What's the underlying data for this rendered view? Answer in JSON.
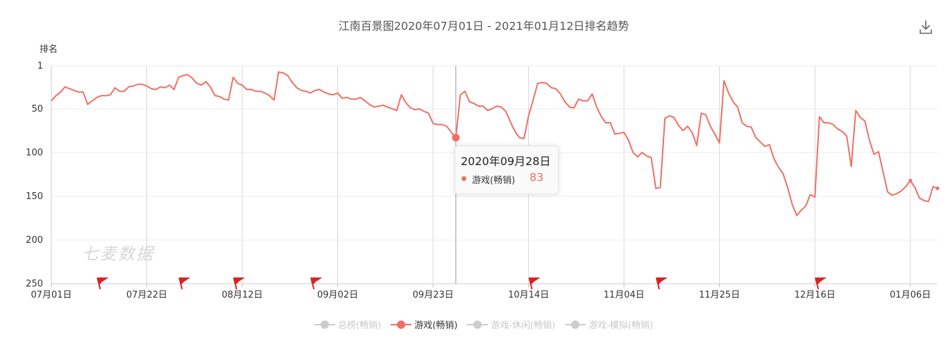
{
  "chart_data": {
    "type": "line",
    "title": "江南百景图2020年07月01日 - 2021年01月12日排名趋势",
    "ylabel": "排名",
    "y_inverted": true,
    "ylim": [
      1,
      250
    ],
    "y_ticks": [
      {
        "value": 1,
        "label": "1"
      },
      {
        "value": 50,
        "label": "50"
      },
      {
        "value": 100,
        "label": "100"
      },
      {
        "value": 150,
        "label": "150"
      },
      {
        "value": 200,
        "label": "200"
      },
      {
        "value": 250,
        "label": "250"
      }
    ],
    "x_range": [
      "2020-07-01",
      "2021-01-12"
    ],
    "x_ticks": [
      {
        "date": "2020-07-01",
        "label": "07月01日"
      },
      {
        "date": "2020-07-22",
        "label": "07月22日"
      },
      {
        "date": "2020-08-12",
        "label": "08月12日"
      },
      {
        "date": "2020-09-02",
        "label": "09月02日"
      },
      {
        "date": "2020-09-23",
        "label": "09月23日"
      },
      {
        "date": "2020-10-14",
        "label": "10月14日"
      },
      {
        "date": "2020-11-04",
        "label": "11月04日"
      },
      {
        "date": "2020-11-25",
        "label": "11月25日"
      },
      {
        "date": "2020-12-16",
        "label": "12月16日"
      },
      {
        "date": "2021-01-06",
        "label": "01月06日"
      }
    ],
    "grid": true,
    "legend_position": "bottom",
    "series": [
      {
        "name": "总榜(畅销)",
        "active": false,
        "points": []
      },
      {
        "name": "游戏(畅销)",
        "active": true,
        "color": "#f06f64",
        "points": [
          [
            "2020-07-01",
            41
          ],
          [
            "2020-07-02",
            35
          ],
          [
            "2020-07-03",
            31
          ],
          [
            "2020-07-04",
            25
          ],
          [
            "2020-07-05",
            27
          ],
          [
            "2020-07-06",
            29
          ],
          [
            "2020-07-07",
            31
          ],
          [
            "2020-07-08",
            31
          ],
          [
            "2020-07-09",
            45
          ],
          [
            "2020-07-10",
            41
          ],
          [
            "2020-07-11",
            37
          ],
          [
            "2020-07-12",
            35
          ],
          [
            "2020-07-13",
            35
          ],
          [
            "2020-07-14",
            34
          ],
          [
            "2020-07-15",
            26
          ],
          [
            "2020-07-16",
            30
          ],
          [
            "2020-07-17",
            30
          ],
          [
            "2020-07-18",
            25
          ],
          [
            "2020-07-19",
            24
          ],
          [
            "2020-07-20",
            22
          ],
          [
            "2020-07-21",
            22
          ],
          [
            "2020-07-22",
            24
          ],
          [
            "2020-07-23",
            27
          ],
          [
            "2020-07-24",
            28
          ],
          [
            "2020-07-25",
            25
          ],
          [
            "2020-07-26",
            26
          ],
          [
            "2020-07-27",
            23
          ],
          [
            "2020-07-28",
            28
          ],
          [
            "2020-07-29",
            14
          ],
          [
            "2020-07-30",
            12
          ],
          [
            "2020-07-31",
            11
          ],
          [
            "2020-08-01",
            15
          ],
          [
            "2020-08-02",
            21
          ],
          [
            "2020-08-03",
            23
          ],
          [
            "2020-08-04",
            19
          ],
          [
            "2020-08-05",
            25
          ],
          [
            "2020-08-06",
            35
          ],
          [
            "2020-08-07",
            36
          ],
          [
            "2020-08-08",
            39
          ],
          [
            "2020-08-09",
            40
          ],
          [
            "2020-08-10",
            14
          ],
          [
            "2020-08-11",
            21
          ],
          [
            "2020-08-12",
            23
          ],
          [
            "2020-08-13",
            28
          ],
          [
            "2020-08-14",
            28
          ],
          [
            "2020-08-15",
            30
          ],
          [
            "2020-08-16",
            30
          ],
          [
            "2020-08-17",
            32
          ],
          [
            "2020-08-18",
            35
          ],
          [
            "2020-08-19",
            40
          ],
          [
            "2020-08-20",
            8
          ],
          [
            "2020-08-21",
            9
          ],
          [
            "2020-08-22",
            12
          ],
          [
            "2020-08-23",
            20
          ],
          [
            "2020-08-24",
            26
          ],
          [
            "2020-08-25",
            29
          ],
          [
            "2020-08-26",
            30
          ],
          [
            "2020-08-27",
            32
          ],
          [
            "2020-08-28",
            29
          ],
          [
            "2020-08-29",
            28
          ],
          [
            "2020-08-30",
            31
          ],
          [
            "2020-08-31",
            33
          ],
          [
            "2020-09-01",
            34
          ],
          [
            "2020-09-02",
            32
          ],
          [
            "2020-09-03",
            38
          ],
          [
            "2020-09-04",
            37
          ],
          [
            "2020-09-05",
            39
          ],
          [
            "2020-09-06",
            39
          ],
          [
            "2020-09-07",
            37
          ],
          [
            "2020-09-08",
            41
          ],
          [
            "2020-09-09",
            45
          ],
          [
            "2020-09-10",
            48
          ],
          [
            "2020-09-11",
            47
          ],
          [
            "2020-09-12",
            46
          ],
          [
            "2020-09-13",
            48
          ],
          [
            "2020-09-14",
            50
          ],
          [
            "2020-09-15",
            52
          ],
          [
            "2020-09-16",
            34
          ],
          [
            "2020-09-17",
            43
          ],
          [
            "2020-09-18",
            49
          ],
          [
            "2020-09-19",
            51
          ],
          [
            "2020-09-20",
            50
          ],
          [
            "2020-09-21",
            53
          ],
          [
            "2020-09-22",
            55
          ],
          [
            "2020-09-23",
            67
          ],
          [
            "2020-09-24",
            68
          ],
          [
            "2020-09-25",
            68
          ],
          [
            "2020-09-26",
            70
          ],
          [
            "2020-09-27",
            77
          ],
          [
            "2020-09-28",
            83
          ],
          [
            "2020-09-29",
            34
          ],
          [
            "2020-09-30",
            30
          ],
          [
            "2020-10-01",
            42
          ],
          [
            "2020-10-02",
            44
          ],
          [
            "2020-10-03",
            47
          ],
          [
            "2020-10-04",
            47
          ],
          [
            "2020-10-05",
            52
          ],
          [
            "2020-10-06",
            50
          ],
          [
            "2020-10-07",
            47
          ],
          [
            "2020-10-08",
            48
          ],
          [
            "2020-10-09",
            53
          ],
          [
            "2020-10-10",
            65
          ],
          [
            "2020-10-11",
            76
          ],
          [
            "2020-10-12",
            83
          ],
          [
            "2020-10-13",
            84
          ],
          [
            "2020-10-14",
            58
          ],
          [
            "2020-10-15",
            40
          ],
          [
            "2020-10-16",
            21
          ],
          [
            "2020-10-17",
            20
          ],
          [
            "2020-10-18",
            21
          ],
          [
            "2020-10-19",
            26
          ],
          [
            "2020-10-20",
            27
          ],
          [
            "2020-10-21",
            33
          ],
          [
            "2020-10-22",
            42
          ],
          [
            "2020-10-23",
            48
          ],
          [
            "2020-10-24",
            49
          ],
          [
            "2020-10-25",
            39
          ],
          [
            "2020-10-26",
            41
          ],
          [
            "2020-10-27",
            41
          ],
          [
            "2020-10-28",
            33
          ],
          [
            "2020-10-29",
            48
          ],
          [
            "2020-10-30",
            59
          ],
          [
            "2020-10-31",
            66
          ],
          [
            "2020-11-01",
            66
          ],
          [
            "2020-11-02",
            79
          ],
          [
            "2020-11-03",
            78
          ],
          [
            "2020-11-04",
            77
          ],
          [
            "2020-11-05",
            86
          ],
          [
            "2020-11-06",
            100
          ],
          [
            "2020-11-07",
            105
          ],
          [
            "2020-11-08",
            100
          ],
          [
            "2020-11-09",
            104
          ],
          [
            "2020-11-10",
            106
          ],
          [
            "2020-11-11",
            141
          ],
          [
            "2020-11-12",
            140
          ],
          [
            "2020-11-13",
            61
          ],
          [
            "2020-11-14",
            58
          ],
          [
            "2020-11-15",
            60
          ],
          [
            "2020-11-16",
            69
          ],
          [
            "2020-11-17",
            75
          ],
          [
            "2020-11-18",
            70
          ],
          [
            "2020-11-19",
            77
          ],
          [
            "2020-11-20",
            92
          ],
          [
            "2020-11-21",
            55
          ],
          [
            "2020-11-22",
            57
          ],
          [
            "2020-11-23",
            70
          ],
          [
            "2020-11-24",
            79
          ],
          [
            "2020-11-25",
            89
          ],
          [
            "2020-11-26",
            18
          ],
          [
            "2020-11-27",
            32
          ],
          [
            "2020-11-28",
            42
          ],
          [
            "2020-11-29",
            48
          ],
          [
            "2020-11-30",
            66
          ],
          [
            "2020-12-01",
            70
          ],
          [
            "2020-12-02",
            71
          ],
          [
            "2020-12-03",
            83
          ],
          [
            "2020-12-04",
            88
          ],
          [
            "2020-12-05",
            93
          ],
          [
            "2020-12-06",
            91
          ],
          [
            "2020-12-07",
            107
          ],
          [
            "2020-12-08",
            117
          ],
          [
            "2020-12-09",
            124
          ],
          [
            "2020-12-10",
            140
          ],
          [
            "2020-12-11",
            159
          ],
          [
            "2020-12-12",
            172
          ],
          [
            "2020-12-13",
            166
          ],
          [
            "2020-12-14",
            161
          ],
          [
            "2020-12-15",
            148
          ],
          [
            "2020-12-16",
            151
          ],
          [
            "2020-12-17",
            59
          ],
          [
            "2020-12-18",
            66
          ],
          [
            "2020-12-19",
            66
          ],
          [
            "2020-12-20",
            68
          ],
          [
            "2020-12-21",
            73
          ],
          [
            "2020-12-22",
            76
          ],
          [
            "2020-12-23",
            81
          ],
          [
            "2020-12-24",
            116
          ],
          [
            "2020-12-25",
            52
          ],
          [
            "2020-12-26",
            60
          ],
          [
            "2020-12-27",
            64
          ],
          [
            "2020-12-28",
            86
          ],
          [
            "2020-12-29",
            102
          ],
          [
            "2020-12-30",
            99
          ],
          [
            "2020-12-31",
            122
          ],
          [
            "2021-01-01",
            145
          ],
          [
            "2021-01-02",
            149
          ],
          [
            "2021-01-03",
            147
          ],
          [
            "2021-01-04",
            144
          ],
          [
            "2021-01-05",
            139
          ],
          [
            "2021-01-06",
            132
          ],
          [
            "2021-01-07",
            140
          ],
          [
            "2021-01-08",
            152
          ],
          [
            "2021-01-09",
            155
          ],
          [
            "2021-01-10",
            156
          ],
          [
            "2021-01-11",
            139
          ],
          [
            "2021-01-12",
            141
          ]
        ]
      },
      {
        "name": "游戏-休闲(畅销)",
        "active": false,
        "points": []
      },
      {
        "name": "游戏-模拟(畅销)",
        "active": false,
        "points": []
      }
    ],
    "event_flags": [
      "2020-07-11",
      "2020-07-29",
      "2020-08-10",
      "2020-08-27",
      "2020-10-14",
      "2020-11-11",
      "2020-12-16"
    ],
    "tooltip": {
      "date": "2020-09-28",
      "title": "2020年09月28日",
      "series": "游戏(畅销)",
      "value": "83"
    },
    "watermark": "七麦数据"
  }
}
